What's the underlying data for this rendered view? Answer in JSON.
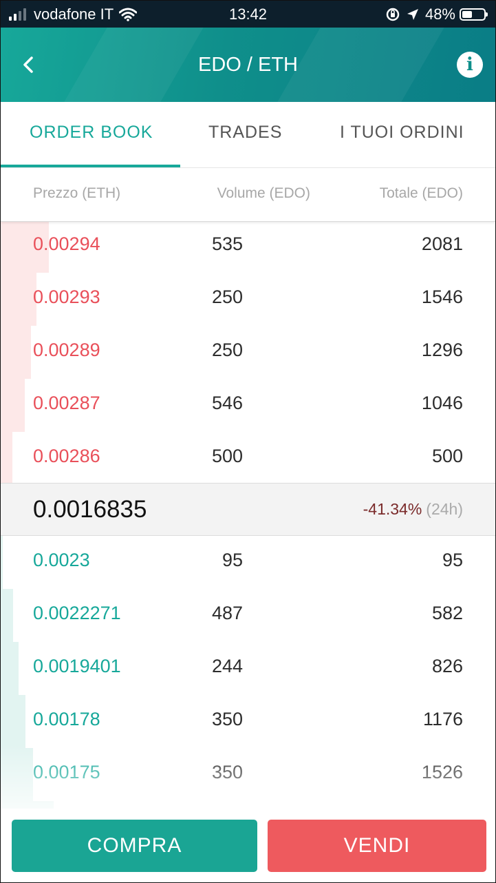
{
  "status_bar": {
    "carrier": "vodafone IT",
    "time": "13:42",
    "battery": "48%",
    "battery_level": 0.48
  },
  "header": {
    "title": "EDO / ETH",
    "back_icon": "chevron-left-icon",
    "info_icon": "info-icon"
  },
  "tabs": [
    {
      "label": "ORDER BOOK",
      "active": true
    },
    {
      "label": "TRADES",
      "active": false
    },
    {
      "label": "I TUOI ORDINI",
      "active": false
    }
  ],
  "columns": {
    "price": "Prezzo (ETH)",
    "volume": "Volume (EDO)",
    "total": "Totale (EDO)"
  },
  "asks": [
    {
      "price": "0.00294",
      "volume": "535",
      "total": "2081"
    },
    {
      "price": "0.00293",
      "volume": "250",
      "total": "1546"
    },
    {
      "price": "0.00289",
      "volume": "250",
      "total": "1296"
    },
    {
      "price": "0.00287",
      "volume": "546",
      "total": "1046"
    },
    {
      "price": "0.00286",
      "volume": "500",
      "total": "500"
    }
  ],
  "last_price": {
    "value": "0.0016835",
    "change": "-41.34%",
    "period": "(24h)"
  },
  "bids": [
    {
      "price": "0.0023",
      "volume": "95",
      "total": "95"
    },
    {
      "price": "0.0022271",
      "volume": "487",
      "total": "582"
    },
    {
      "price": "0.0019401",
      "volume": "244",
      "total": "826"
    },
    {
      "price": "0.00178",
      "volume": "350",
      "total": "1176"
    },
    {
      "price": "0.00175",
      "volume": "350",
      "total": "1526"
    }
  ],
  "actions": {
    "buy": "COMPRA",
    "sell": "VENDI"
  },
  "colors": {
    "accent": "#17a89a",
    "ask": "#e9505a",
    "bid": "#17a89a",
    "buy_button": "#1aa594",
    "sell_button": "#ee5a5e"
  }
}
